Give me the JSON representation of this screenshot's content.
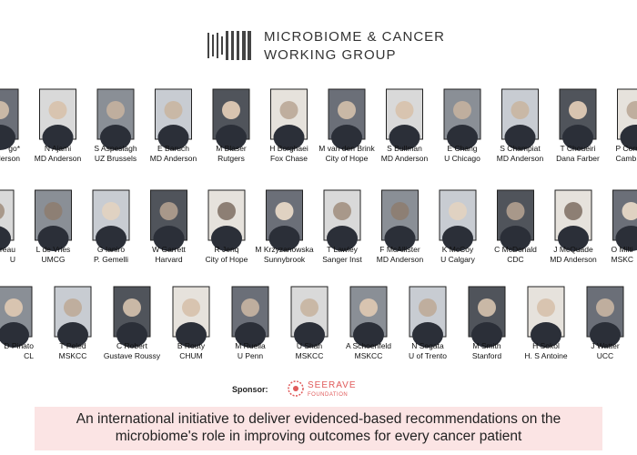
{
  "header": {
    "title_lines": [
      "MICROBIOME & CANCER",
      "WORKING GROUP"
    ]
  },
  "rows": [
    [
      {
        "name": "go*",
        "affiliation": "nderson"
      },
      {
        "name": "N Ajami",
        "affiliation": "MD Anderson"
      },
      {
        "name": "S Aspeslagh",
        "affiliation": "UZ Brussels"
      },
      {
        "name": "E Baruch",
        "affiliation": "MD Anderson"
      },
      {
        "name": "M Blaser",
        "affiliation": "Rutgers"
      },
      {
        "name": "H Borghaei",
        "affiliation": "Fox Chase"
      },
      {
        "name": "M van den Brink",
        "affiliation": "City of Hope"
      },
      {
        "name": "S Bullman",
        "affiliation": "MD Anderson"
      },
      {
        "name": "E Chang",
        "affiliation": "U Chicago"
      },
      {
        "name": "S Champiat",
        "affiliation": "MD Anderson"
      },
      {
        "name": "T Choueiri",
        "affiliation": "Dana Farber"
      },
      {
        "name": "P Corr",
        "affiliation": "Camb"
      }
    ],
    [
      {
        "name": "dreau",
        "affiliation": "U"
      },
      {
        "name": "L de Vries",
        "affiliation": "UMCG"
      },
      {
        "name": "G Ianiro",
        "affiliation": "P. Gemelli"
      },
      {
        "name": "W Garrett",
        "affiliation": "Harvard"
      },
      {
        "name": "R Jenq",
        "affiliation": "City of Hope"
      },
      {
        "name": "M Krzyzanowska",
        "affiliation": "Sunnybrook"
      },
      {
        "name": "T Lawley",
        "affiliation": "Sanger Inst"
      },
      {
        "name": "F McAllister",
        "affiliation": "MD Anderson"
      },
      {
        "name": "K McCoy",
        "affiliation": "U Calgary"
      },
      {
        "name": "C McDonald",
        "affiliation": "CDC"
      },
      {
        "name": "J McQuade",
        "affiliation": "MD Anderson"
      },
      {
        "name": "O Milti",
        "affiliation": "MSKC"
      }
    ],
    [
      {
        "name": "D Pinato",
        "affiliation": "CL"
      },
      {
        "name": "T Peled",
        "affiliation": "MSKCC"
      },
      {
        "name": "C Robert",
        "affiliation": "Gustave Roussy"
      },
      {
        "name": "B Routy",
        "affiliation": "CHUM"
      },
      {
        "name": "M Ruella",
        "affiliation": "U Penn"
      },
      {
        "name": "U Shah",
        "affiliation": "MSKCC"
      },
      {
        "name": "A Schoenfeld",
        "affiliation": "MSKCC"
      },
      {
        "name": "N Segata",
        "affiliation": "U of Trento"
      },
      {
        "name": "M Smith",
        "affiliation": "Stanford"
      },
      {
        "name": "H Sokol",
        "affiliation": "H. S Antoine"
      },
      {
        "name": "J Watter",
        "affiliation": "UCC"
      }
    ]
  ],
  "sponsor": {
    "label": "Sponsor:",
    "name": "SEERAVE",
    "subname": "FOUNDATION"
  },
  "banner": {
    "lines": [
      "An international initiative to deliver evidenced-based recommendations on the",
      "microbiome's role in improving outcomes for every cancer patient"
    ]
  }
}
